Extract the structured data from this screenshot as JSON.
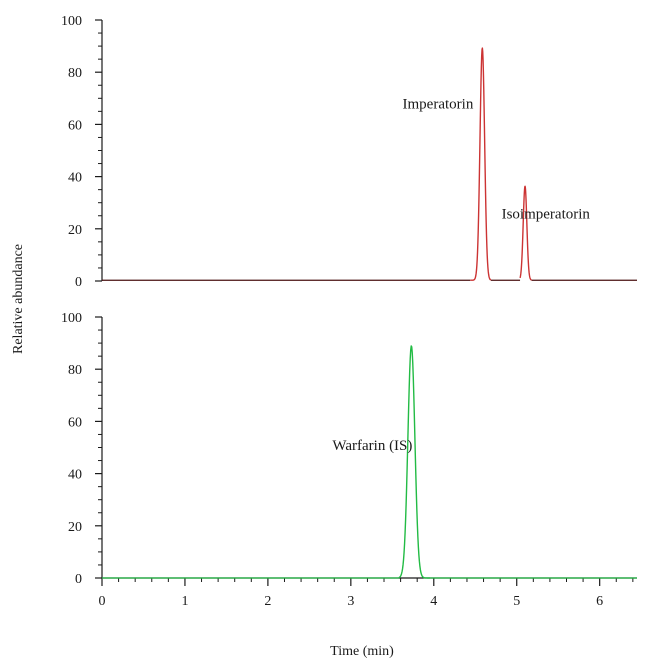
{
  "chart_data": {
    "type": "line",
    "xlabel": "Time (min)",
    "ylabel": "Relative abundance",
    "xlim": [
      0,
      6.45
    ],
    "x_ticks": [
      "0",
      "1",
      "2",
      "3",
      "4",
      "5",
      "6"
    ],
    "grid": false,
    "panels": [
      {
        "id": "top",
        "ylim": [
          0,
          100
        ],
        "y_ticks": [
          "0",
          "20",
          "40",
          "60",
          "80",
          "100"
        ],
        "series": [
          {
            "color": "#cc3333",
            "baseline_color": "#4a1010",
            "baseline": 0.3,
            "peaks": [
              {
                "center": 4.585,
                "height": 89,
                "sigma": 0.028,
                "start": 4.44,
                "end": 4.69
              },
              {
                "center": 5.1,
                "height": 36,
                "sigma": 0.022,
                "start": 5.04,
                "end": 5.18
              }
            ]
          }
        ],
        "annotations": [
          {
            "text": "Imperatorin",
            "x": 4.05,
            "y": 66
          },
          {
            "text": "Isoimperatorin",
            "x": 5.35,
            "y": 24
          }
        ]
      },
      {
        "id": "bottom",
        "ylim": [
          0,
          100
        ],
        "y_ticks": [
          "0",
          "20",
          "40",
          "60",
          "80",
          "100"
        ],
        "series": [
          {
            "color": "#22bb44",
            "baseline_color": "#22bb44",
            "baseline": 0,
            "peaks": [
              {
                "center": 3.73,
                "height": 89,
                "sigma": 0.042,
                "start": 3.58,
                "end": 3.95
              }
            ]
          }
        ],
        "annotations": [
          {
            "text": "Warfarin (IS)",
            "x": 3.26,
            "y": 49
          }
        ]
      }
    ]
  }
}
